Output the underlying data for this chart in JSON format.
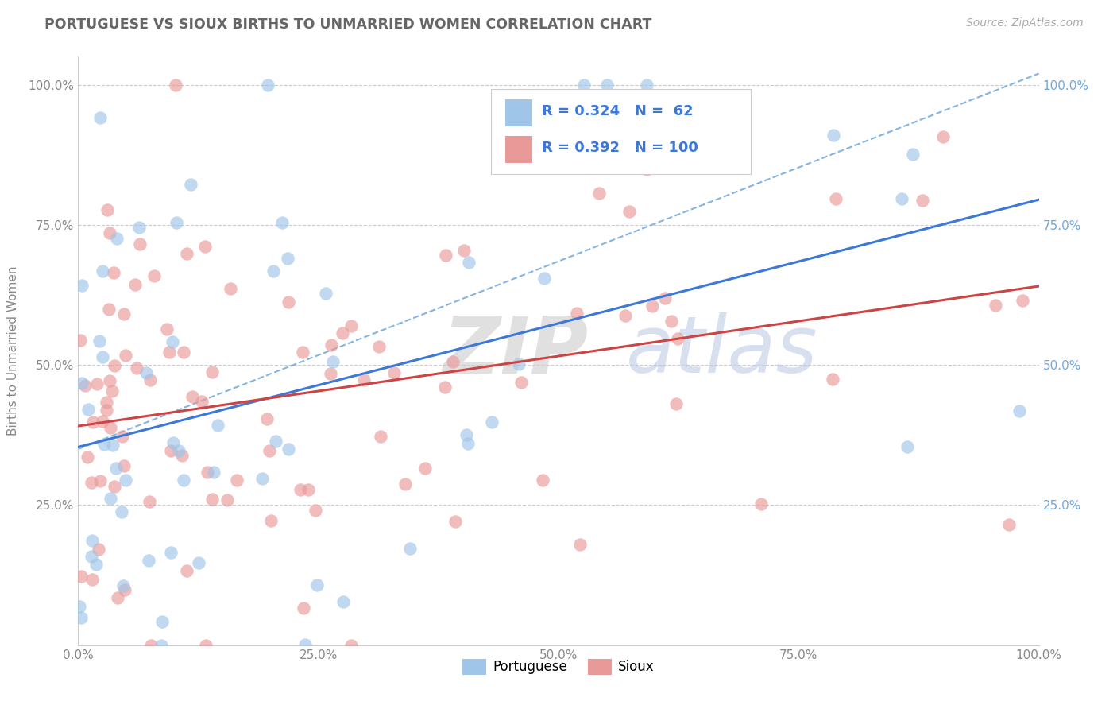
{
  "title": "PORTUGUESE VS SIOUX BIRTHS TO UNMARRIED WOMEN CORRELATION CHART",
  "source": "Source: ZipAtlas.com",
  "ylabel": "Births to Unmarried Women",
  "r_portuguese": 0.324,
  "n_portuguese": 62,
  "r_sioux": 0.392,
  "n_sioux": 100,
  "color_portuguese": "#9fc5e8",
  "color_sioux": "#ea9999",
  "line_color_portuguese": "#3c78d8",
  "line_color_sioux": "#cc4444",
  "dash_line_color": "#6fa8dc",
  "background_color": "#ffffff",
  "grid_color": "#cccccc",
  "tick_color_left": "#888888",
  "tick_color_right": "#6fa8dc",
  "title_color": "#666666",
  "watermark_zip": "ZIP",
  "watermark_atlas": "atlas",
  "watermark_color_zip": "#cccccc",
  "watermark_color_atlas": "#aabbdd"
}
